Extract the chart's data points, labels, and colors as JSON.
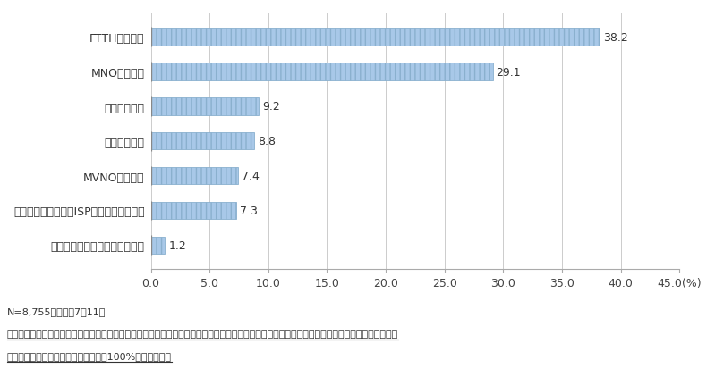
{
  "categories": [
    "ケーブルテレビインターネット",
    "プロバイダ（分離型ISP、回線種類不明）",
    "MVNOサービス",
    "その他移動系",
    "その他固定系",
    "MNOサービス",
    "FTTHサービス"
  ],
  "values": [
    1.2,
    7.3,
    7.4,
    8.8,
    9.2,
    29.1,
    38.2
  ],
  "bar_color": "#a8c8e8",
  "bar_edge_color": "#8ab0ce",
  "bar_hatch": "|||",
  "xlim": [
    0,
    45.0
  ],
  "xticks": [
    0.0,
    5.0,
    10.0,
    15.0,
    20.0,
    25.0,
    30.0,
    35.0,
    40.0,
    45.0
  ],
  "xlabel_suffix": "(%)",
  "footnote1": "N=8,755　期間：7～11月",
  "footnote2": "注：「プロバイダ」には、アクセス回線と一体的に提供されるサービスを「プロバイダ」と表現したため計上されている事例が多く含まれている。",
  "footnote3": "　　複数選択のため、合計は必ずしも100%にならない。",
  "bg_color": "#ffffff",
  "label_fontsize": 9,
  "value_fontsize": 9,
  "footnote_fontsize": 8,
  "bar_height": 0.5
}
